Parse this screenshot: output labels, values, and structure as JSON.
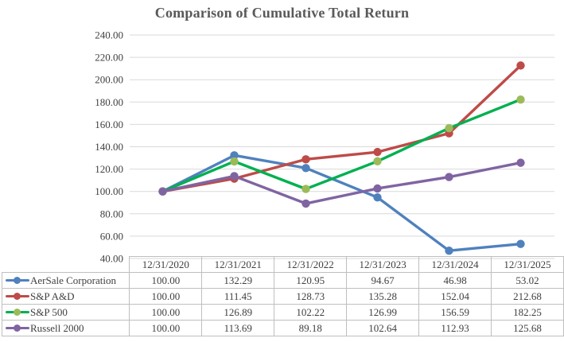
{
  "chart_data": {
    "type": "line",
    "title": "Comparison of Cumulative Total Return",
    "x_labels": [
      "12/31/2020",
      "12/31/2021",
      "12/31/2022",
      "12/31/2023",
      "12/31/2024",
      "12/31/2025"
    ],
    "series": [
      {
        "name": "AerSale Corporation",
        "line_color": "#4F81BD",
        "marker_color": "#4F81BD",
        "values": [
          100.0,
          132.29,
          120.95,
          94.67,
          46.98,
          53.02
        ]
      },
      {
        "name": "S&P A&D",
        "line_color": "#BE4B48",
        "marker_color": "#BE4B48",
        "values": [
          100.0,
          111.45,
          128.73,
          135.28,
          152.04,
          212.68
        ]
      },
      {
        "name": "S&P 500",
        "line_color": "#00B050",
        "marker_color": "#9BBB59",
        "values": [
          100.0,
          126.89,
          102.22,
          126.99,
          156.59,
          182.25
        ]
      },
      {
        "name": "Russell 2000",
        "line_color": "#8064A2",
        "marker_color": "#8064A2",
        "values": [
          100.0,
          113.69,
          89.18,
          102.64,
          112.93,
          125.68
        ]
      }
    ],
    "y_ticks": [
      240,
      220,
      200,
      180,
      160,
      140,
      120,
      100,
      80,
      60,
      40
    ],
    "y_tick_labels": [
      "240.00",
      "220.00",
      "200.00",
      "180.00",
      "160.00",
      "140.00",
      "120.00",
      "100.00",
      "80.00",
      "60.00",
      "40.00"
    ],
    "ylim": [
      40,
      240
    ],
    "grid": true,
    "legend_position": "table-left-column",
    "value_format_decimals": 2
  },
  "styles": {
    "title_color": "#595959",
    "axis_text_color": "#404040",
    "grid_color": "#D9D9D9",
    "table_border_color": "#BFBFBF",
    "table_text_color": "#404040",
    "background_color": "#FFFFFF"
  }
}
